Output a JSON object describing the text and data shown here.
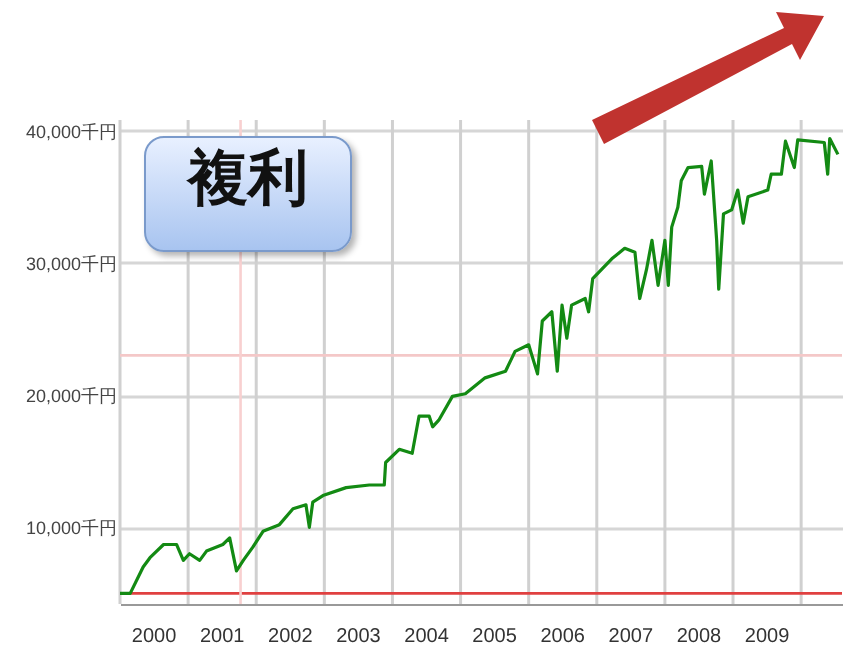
{
  "chart_data": {
    "type": "line",
    "annotations": [
      "複利"
    ],
    "x": [
      2000.0,
      2000.15,
      2000.34,
      2000.44,
      2000.64,
      2000.83,
      2000.93,
      2001.02,
      2001.17,
      2001.27,
      2001.51,
      2001.61,
      2001.71,
      2001.81,
      2001.95,
      2002.1,
      2002.34,
      2002.54,
      2002.73,
      2002.78,
      2002.83,
      2002.98,
      2003.32,
      2003.66,
      2003.88,
      2003.9,
      2004.1,
      2004.29,
      2004.39,
      2004.54,
      2004.59,
      2004.68,
      2004.88,
      2005.07,
      2005.36,
      2005.66,
      2005.8,
      2006.0,
      2006.13,
      2006.2,
      2006.34,
      2006.42,
      2006.49,
      2006.56,
      2006.63,
      2006.83,
      2006.88,
      2006.94,
      2007.22,
      2007.41,
      2007.56,
      2007.63,
      2007.73,
      2007.81,
      2007.9,
      2008.0,
      2008.05,
      2008.1,
      2008.19,
      2008.24,
      2008.34,
      2008.54,
      2008.58,
      2008.68,
      2008.76,
      2008.79,
      2008.86,
      2008.98,
      2009.07,
      2009.15,
      2009.22,
      2009.51,
      2009.56,
      2009.71,
      2009.77,
      2009.9,
      2009.95,
      2010.34,
      2010.39,
      2010.42,
      2010.54
    ],
    "series": [
      {
        "color": "#138a13",
        "values": [
          5000,
          5000,
          7000,
          7700,
          8700,
          8700,
          7500,
          8000,
          7500,
          8200,
          8700,
          9200,
          6700,
          7500,
          8500,
          9700,
          10200,
          11400,
          11700,
          10000,
          11900,
          12400,
          13000,
          13200,
          13200,
          14900,
          15900,
          15600,
          18400,
          18400,
          17600,
          18100,
          19900,
          20100,
          21300,
          21800,
          23300,
          23800,
          21600,
          25600,
          26300,
          21800,
          26800,
          24300,
          26800,
          27300,
          26300,
          28800,
          30300,
          31100,
          30800,
          27300,
          29500,
          31700,
          28300,
          31700,
          28300,
          32700,
          34200,
          36200,
          37200,
          37300,
          35200,
          37700,
          31700,
          28000,
          33700,
          34000,
          35500,
          33000,
          35000,
          35500,
          36700,
          36700,
          39200,
          37200,
          39300,
          39100,
          36700,
          39400,
          38200
        ]
      }
    ],
    "xlim": [
      2000,
      2010.6
    ],
    "xticks": [
      {
        "value": 2000,
        "label": null
      },
      {
        "value": 2000.5,
        "label": "2000"
      },
      {
        "value": 2001,
        "label": null
      },
      {
        "value": 2001.5,
        "label": "2001"
      },
      {
        "value": 2002,
        "label": null
      },
      {
        "value": 2002.5,
        "label": "2002"
      },
      {
        "value": 2003,
        "label": null
      },
      {
        "value": 2003.5,
        "label": "2003"
      },
      {
        "value": 2004,
        "label": null
      },
      {
        "value": 2004.5,
        "label": "2004"
      },
      {
        "value": 2005,
        "label": null
      },
      {
        "value": 2005.5,
        "label": "2005"
      },
      {
        "value": 2006,
        "label": null
      },
      {
        "value": 2006.5,
        "label": "2006"
      },
      {
        "value": 2007,
        "label": null
      },
      {
        "value": 2007.5,
        "label": "2007"
      },
      {
        "value": 2008,
        "label": null
      },
      {
        "value": 2008.5,
        "label": "2008"
      },
      {
        "value": 2009,
        "label": null
      },
      {
        "value": 2009.5,
        "label": "2009"
      },
      {
        "value": 2010,
        "label": null
      }
    ],
    "ylim": [
      4200,
      40800
    ],
    "yticks": [
      {
        "value": 10000,
        "label": "10,000千円"
      },
      {
        "value": 20000,
        "label": "20,000千円"
      },
      {
        "value": 30000,
        "label": "30,000千円"
      },
      {
        "value": 40000,
        "label": "40,000千円"
      }
    ],
    "ref_lines": [
      {
        "axis": "y",
        "value": 5000,
        "color": "#e04040"
      },
      {
        "axis": "y",
        "value": 23000,
        "color": "#f4c8c8"
      },
      {
        "axis": "x",
        "value": 2001.77,
        "color": "#f8d0d0"
      }
    ],
    "grid": true
  }
}
